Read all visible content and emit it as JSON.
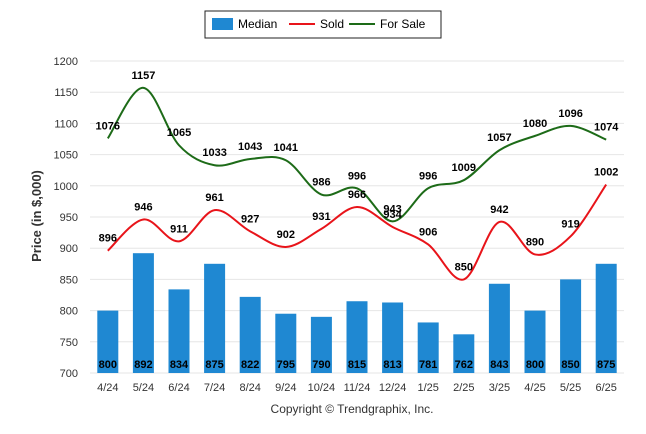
{
  "chart_data": {
    "type": "bar",
    "title": "",
    "ylabel": "Price (in $,000)",
    "xlabel": "",
    "credit": "Copyright © Trendgraphix, Inc.",
    "categories": [
      "4/24",
      "5/24",
      "6/24",
      "7/24",
      "8/24",
      "9/24",
      "10/24",
      "11/24",
      "12/24",
      "1/25",
      "2/25",
      "3/25",
      "4/25",
      "5/25",
      "6/25"
    ],
    "ylim": [
      700,
      1200
    ],
    "yticks": [
      700,
      750,
      800,
      850,
      900,
      950,
      1000,
      1050,
      1100,
      1150,
      1200
    ],
    "grid": true,
    "legend_position": "top-center",
    "series": [
      {
        "name": "Median",
        "kind": "bar",
        "color": "#1f88d2",
        "values": [
          800,
          892,
          834,
          875,
          822,
          795,
          790,
          815,
          813,
          781,
          762,
          843,
          800,
          850,
          875
        ]
      },
      {
        "name": "Sold",
        "kind": "line",
        "color": "#e8141a",
        "values": [
          896,
          946,
          911,
          961,
          927,
          902,
          931,
          966,
          934,
          906,
          850,
          942,
          890,
          919,
          1002
        ]
      },
      {
        "name": "For Sale",
        "kind": "line",
        "color": "#1d6b18",
        "values": [
          1076,
          1157,
          1065,
          1033,
          1043,
          1041,
          986,
          996,
          943,
          996,
          1009,
          1057,
          1080,
          1096,
          1074
        ]
      }
    ]
  }
}
